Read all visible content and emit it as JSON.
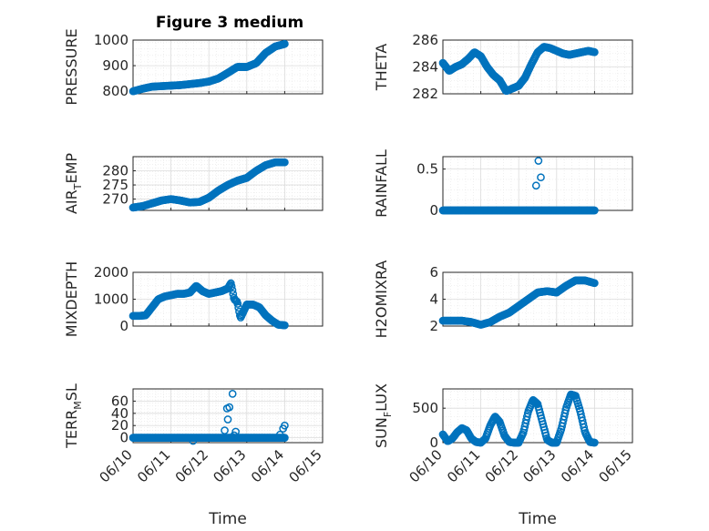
{
  "figure": {
    "title": "Figure 3 medium",
    "marker_color": "#0072BD",
    "x_date_labels": [
      "06/10",
      "06/11",
      "06/12",
      "06/13",
      "06/14",
      "06/15"
    ],
    "x_label": "Time"
  },
  "chart_data": [
    {
      "type": "scatter",
      "panel": "left-1",
      "ylabel": "PRESSURE",
      "ylim": [
        790,
        1000
      ],
      "yticks": [
        800,
        900,
        1000
      ],
      "xlim": [
        "06/10",
        "06/15"
      ],
      "grid": true,
      "minor_grid": true,
      "x": [
        "06/10 00:00",
        "06/10 06:00",
        "06/10 12:00",
        "06/10 18:00",
        "06/11 00:00",
        "06/11 06:00",
        "06/11 12:00",
        "06/11 18:00",
        "06/12 00:00",
        "06/12 06:00",
        "06/12 12:00",
        "06/12 18:00",
        "06/13 00:00",
        "06/13 06:00",
        "06/13 12:00",
        "06/13 18:00",
        "06/14 00:00"
      ],
      "y": [
        800,
        810,
        818,
        820,
        822,
        824,
        828,
        832,
        838,
        850,
        872,
        895,
        895,
        910,
        950,
        975,
        985
      ]
    },
    {
      "type": "scatter",
      "panel": "right-1",
      "ylabel": "THETA",
      "ylim": [
        282,
        286
      ],
      "yticks": [
        282,
        284,
        286
      ],
      "xlim": [
        "06/10",
        "06/15"
      ],
      "grid": true,
      "minor_grid": true,
      "x": [
        "06/10 00:00",
        "06/10 04:00",
        "06/10 08:00",
        "06/10 12:00",
        "06/10 16:00",
        "06/10 20:00",
        "06/11 00:00",
        "06/11 04:00",
        "06/11 08:00",
        "06/11 12:00",
        "06/11 16:00",
        "06/11 20:00",
        "06/12 00:00",
        "06/12 04:00",
        "06/12 08:00",
        "06/12 12:00",
        "06/12 16:00",
        "06/12 20:00",
        "06/13 00:00",
        "06/13 04:00",
        "06/13 08:00",
        "06/13 12:00",
        "06/13 16:00",
        "06/13 20:00",
        "06/14 00:00"
      ],
      "y": [
        284.3,
        283.7,
        284.0,
        284.2,
        284.6,
        285.1,
        284.8,
        284.0,
        283.4,
        283.0,
        282.2,
        282.4,
        282.6,
        283.2,
        284.2,
        285.1,
        285.5,
        285.4,
        285.2,
        285.0,
        284.9,
        285.0,
        285.1,
        285.2,
        285.1
      ]
    },
    {
      "type": "scatter",
      "panel": "left-2",
      "ylabel": "AIR_TEMP",
      "ylim": [
        266,
        285
      ],
      "yticks": [
        270,
        275,
        280
      ],
      "xlim": [
        "06/10",
        "06/15"
      ],
      "grid": true,
      "minor_grid": true,
      "x": [
        "06/10 00:00",
        "06/10 06:00",
        "06/10 12:00",
        "06/10 18:00",
        "06/11 00:00",
        "06/11 06:00",
        "06/11 12:00",
        "06/11 18:00",
        "06/12 00:00",
        "06/12 06:00",
        "06/12 12:00",
        "06/12 18:00",
        "06/13 00:00",
        "06/13 06:00",
        "06/13 12:00",
        "06/13 18:00",
        "06/14 00:00"
      ],
      "y": [
        267,
        267.5,
        268.5,
        269.5,
        270,
        269.5,
        268.8,
        269.0,
        270.5,
        273,
        275,
        276.5,
        277.5,
        280,
        282,
        283,
        283
      ]
    },
    {
      "type": "scatter",
      "panel": "right-2",
      "ylabel": "RAINFALL",
      "ylim": [
        0,
        0.65
      ],
      "yticks": [
        0,
        0.5
      ],
      "xlim": [
        "06/10",
        "06/15"
      ],
      "grid": true,
      "minor_grid": true,
      "baseline_from": "06/10 00:00",
      "baseline_to": "06/14 00:00",
      "baseline_value": 0,
      "x": [
        "06/12 11:00",
        "06/12 12:30",
        "06/12 14:00"
      ],
      "y": [
        0.3,
        0.6,
        0.4
      ]
    },
    {
      "type": "scatter",
      "panel": "left-3",
      "ylabel": "MIXDEPTH",
      "ylim": [
        0,
        2000
      ],
      "yticks": [
        0,
        1000,
        2000
      ],
      "xlim": [
        "06/10",
        "06/15"
      ],
      "grid": true,
      "minor_grid": true,
      "x": [
        "06/10 00:00",
        "06/10 04:00",
        "06/10 08:00",
        "06/10 12:00",
        "06/10 16:00",
        "06/10 20:00",
        "06/11 00:00",
        "06/11 04:00",
        "06/11 08:00",
        "06/11 12:00",
        "06/11 16:00",
        "06/11 20:00",
        "06/12 00:00",
        "06/12 04:00",
        "06/12 08:00",
        "06/12 12:00",
        "06/12 14:00",
        "06/12 16:00",
        "06/12 18:00",
        "06/12 20:00",
        "06/13 00:00",
        "06/13 04:00",
        "06/13 08:00",
        "06/13 12:00",
        "06/13 16:00",
        "06/13 20:00",
        "06/14 00:00"
      ],
      "y": [
        380,
        380,
        400,
        700,
        1000,
        1100,
        1150,
        1200,
        1200,
        1250,
        1500,
        1300,
        1200,
        1250,
        1300,
        1400,
        1600,
        1000,
        900,
        300,
        800,
        800,
        700,
        400,
        200,
        50,
        30
      ]
    },
    {
      "type": "scatter",
      "panel": "right-3",
      "ylabel": "H2OMIXRA",
      "ylim": [
        2,
        6
      ],
      "yticks": [
        2,
        4,
        6
      ],
      "xlim": [
        "06/10",
        "06/15"
      ],
      "grid": true,
      "minor_grid": true,
      "x": [
        "06/10 00:00",
        "06/10 06:00",
        "06/10 12:00",
        "06/10 18:00",
        "06/11 00:00",
        "06/11 06:00",
        "06/11 12:00",
        "06/11 18:00",
        "06/12 00:00",
        "06/12 06:00",
        "06/12 12:00",
        "06/12 18:00",
        "06/13 00:00",
        "06/13 06:00",
        "06/13 12:00",
        "06/13 18:00",
        "06/14 00:00"
      ],
      "y": [
        2.4,
        2.4,
        2.4,
        2.3,
        2.1,
        2.3,
        2.7,
        3.0,
        3.5,
        4.0,
        4.5,
        4.6,
        4.5,
        5.0,
        5.4,
        5.4,
        5.2
      ]
    },
    {
      "type": "scatter",
      "panel": "left-4",
      "ylabel": "TERR_MSL",
      "ylim": [
        -8,
        80
      ],
      "yticks": [
        0,
        20,
        40,
        60
      ],
      "xlim": [
        "06/10",
        "06/15"
      ],
      "grid": true,
      "minor_grid": true,
      "baseline_from": "06/10 00:00",
      "baseline_to": "06/14 00:00",
      "baseline_value": 0,
      "x": [
        "06/11 14:00",
        "06/12 10:00",
        "06/12 11:30",
        "06/12 13:00",
        "06/12 15:00",
        "06/12 17:00",
        "06/13 21:00",
        "06/13 23:00",
        "06/14 00:00",
        "06/12 12:00",
        "06/12 16:00"
      ],
      "y": [
        -5,
        12,
        48,
        50,
        72,
        10,
        5,
        15,
        20,
        30,
        4
      ]
    },
    {
      "type": "scatter",
      "panel": "right-4",
      "ylabel": "SUN_FLUX",
      "ylim": [
        0,
        780
      ],
      "yticks": [
        0,
        500
      ],
      "xlim": [
        "06/10",
        "06/15"
      ],
      "grid": true,
      "minor_grid": true,
      "x": [
        "06/10 00:00",
        "06/10 03:00",
        "06/10 06:00",
        "06/10 09:00",
        "06/10 12:00",
        "06/10 15:00",
        "06/10 18:00",
        "06/10 21:00",
        "06/11 00:00",
        "06/11 03:00",
        "06/11 06:00",
        "06/11 09:00",
        "06/11 12:00",
        "06/11 15:00",
        "06/11 18:00",
        "06/11 21:00",
        "06/12 00:00",
        "06/12 03:00",
        "06/12 06:00",
        "06/12 09:00",
        "06/12 12:00",
        "06/12 15:00",
        "06/12 18:00",
        "06/12 21:00",
        "06/13 00:00",
        "06/13 03:00",
        "06/13 06:00",
        "06/13 09:00",
        "06/13 12:00",
        "06/13 15:00",
        "06/13 18:00",
        "06/13 21:00",
        "06/14 00:00"
      ],
      "y": [
        120,
        20,
        60,
        150,
        210,
        180,
        60,
        10,
        0,
        60,
        250,
        380,
        300,
        100,
        10,
        0,
        0,
        150,
        450,
        620,
        560,
        300,
        40,
        0,
        0,
        200,
        500,
        700,
        680,
        450,
        150,
        10,
        0
      ]
    }
  ],
  "panels_labels": {
    "left-1": {
      "ylabel": "PRESSURE",
      "ticks": [
        "800",
        "900",
        "1000"
      ]
    },
    "right-1": {
      "ylabel": "THETA",
      "ticks": [
        "282",
        "284",
        "286"
      ]
    },
    "left-2": {
      "ylabel_main": "AIR",
      "ylabel_sub": "T",
      "ylabel_rest": "EMP",
      "ticks": [
        "270",
        "275",
        "280"
      ]
    },
    "right-2": {
      "ylabel": "RAINFALL",
      "ticks": [
        "0",
        "0.5"
      ]
    },
    "left-3": {
      "ylabel": "MIXDEPTH",
      "ticks": [
        "0",
        "1000",
        "2000"
      ]
    },
    "right-3": {
      "ylabel": "H2OMIXRA",
      "ticks": [
        "2",
        "4",
        "6"
      ]
    },
    "left-4": {
      "ylabel_main": "TERR",
      "ylabel_sub": "M",
      "ylabel_rest": "SL",
      "ticks": [
        "0",
        "20",
        "40",
        "60"
      ]
    },
    "right-4": {
      "ylabel_main": "SUN",
      "ylabel_sub": "F",
      "ylabel_rest": "LUX",
      "ticks": [
        "0",
        "500"
      ]
    }
  }
}
